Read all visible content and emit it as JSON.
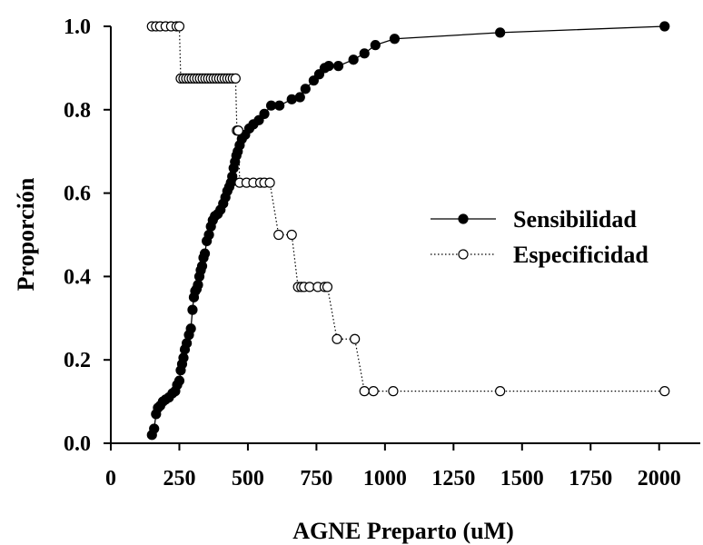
{
  "chart_data": {
    "type": "line",
    "xlabel": "AGNE Preparto (uM)",
    "ylabel": "Proporción",
    "xlim": [
      0,
      2150
    ],
    "ylim": [
      0,
      1.0
    ],
    "x_ticks": [
      0,
      250,
      500,
      750,
      1000,
      1250,
      1500,
      1750,
      2000
    ],
    "x_tick_labels": [
      "0",
      "250",
      "500",
      "750",
      "1000",
      "1250",
      "1500",
      "1750",
      "2000"
    ],
    "y_ticks": [
      0.0,
      0.2,
      0.4,
      0.6,
      0.8,
      1.0
    ],
    "y_tick_labels": [
      "0.0",
      "0.2",
      "0.4",
      "0.6",
      "0.8",
      "1.0"
    ],
    "grid": false,
    "legend_position": "right",
    "series": [
      {
        "name": "Sensibilidad",
        "line_style": "solid",
        "marker": "filled-circle",
        "x": [
          150,
          158,
          165,
          172,
          180,
          190,
          200,
          212,
          225,
          235,
          242,
          250,
          255,
          260,
          265,
          270,
          277,
          285,
          292,
          298,
          303,
          308,
          313,
          318,
          323,
          328,
          333,
          338,
          343,
          350,
          358,
          365,
          372,
          380,
          390,
          400,
          410,
          418,
          425,
          432,
          438,
          443,
          448,
          453,
          458,
          463,
          470,
          478,
          490,
          505,
          520,
          540,
          560,
          585,
          615,
          660,
          690,
          710,
          740,
          760,
          780,
          795,
          830,
          885,
          925,
          965,
          1035,
          1420,
          2020
        ],
        "y": [
          0.02,
          0.035,
          0.07,
          0.085,
          0.09,
          0.1,
          0.105,
          0.11,
          0.12,
          0.125,
          0.14,
          0.15,
          0.175,
          0.19,
          0.205,
          0.225,
          0.24,
          0.26,
          0.275,
          0.32,
          0.35,
          0.365,
          0.37,
          0.38,
          0.4,
          0.415,
          0.425,
          0.445,
          0.455,
          0.485,
          0.5,
          0.52,
          0.535,
          0.545,
          0.55,
          0.56,
          0.575,
          0.59,
          0.605,
          0.615,
          0.625,
          0.64,
          0.66,
          0.675,
          0.69,
          0.7,
          0.715,
          0.73,
          0.74,
          0.755,
          0.765,
          0.775,
          0.79,
          0.81,
          0.81,
          0.825,
          0.83,
          0.85,
          0.87,
          0.885,
          0.9,
          0.905,
          0.905,
          0.92,
          0.935,
          0.955,
          0.97,
          0.985,
          1.0
        ]
      },
      {
        "name": "Especificidad",
        "line_style": "dotted",
        "marker": "open-circle",
        "x": [
          150,
          165,
          180,
          200,
          220,
          240,
          250,
          255,
          265,
          275,
          285,
          295,
          305,
          315,
          325,
          335,
          345,
          355,
          365,
          375,
          385,
          395,
          405,
          415,
          425,
          435,
          445,
          455,
          460,
          465,
          470,
          495,
          520,
          545,
          560,
          580,
          612,
          660,
          683,
          695,
          705,
          725,
          755,
          780,
          790,
          825,
          890,
          925,
          958,
          1030,
          1420,
          2020
        ],
        "y": [
          1.0,
          1.0,
          1.0,
          1.0,
          1.0,
          1.0,
          1.0,
          0.875,
          0.875,
          0.875,
          0.875,
          0.875,
          0.875,
          0.875,
          0.875,
          0.875,
          0.875,
          0.875,
          0.875,
          0.875,
          0.875,
          0.875,
          0.875,
          0.875,
          0.875,
          0.875,
          0.875,
          0.875,
          0.75,
          0.75,
          0.625,
          0.625,
          0.625,
          0.625,
          0.625,
          0.625,
          0.5,
          0.5,
          0.375,
          0.375,
          0.375,
          0.375,
          0.375,
          0.375,
          0.375,
          0.25,
          0.25,
          0.125,
          0.125,
          0.125,
          0.125,
          0.125
        ]
      }
    ]
  }
}
